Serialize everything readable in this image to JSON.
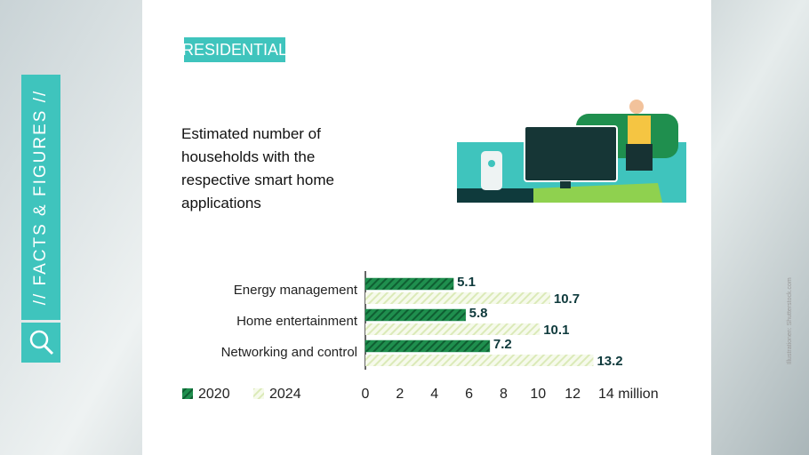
{
  "header": {
    "tag": "RESIDENTIAL",
    "side_label": "// FACTS & FIGURES //",
    "credit": "Illustrationen: Shutterstock.com"
  },
  "chart_data": {
    "type": "hbar",
    "title": "Estimated number of households with the respective smart home applications",
    "categories": [
      "Energy management",
      "Home entertainment",
      "Networking and control"
    ],
    "series": [
      {
        "name": "2020",
        "color": "#1f8f4e",
        "values": [
          5.1,
          5.8,
          7.2
        ]
      },
      {
        "name": "2024",
        "color": "#e3efc6",
        "values": [
          10.7,
          10.1,
          13.2
        ]
      }
    ],
    "xlim": [
      0,
      14
    ],
    "xticks": [
      0,
      2,
      4,
      6,
      8,
      10,
      12,
      {
        "value": 14,
        "label": "14 million"
      }
    ]
  }
}
